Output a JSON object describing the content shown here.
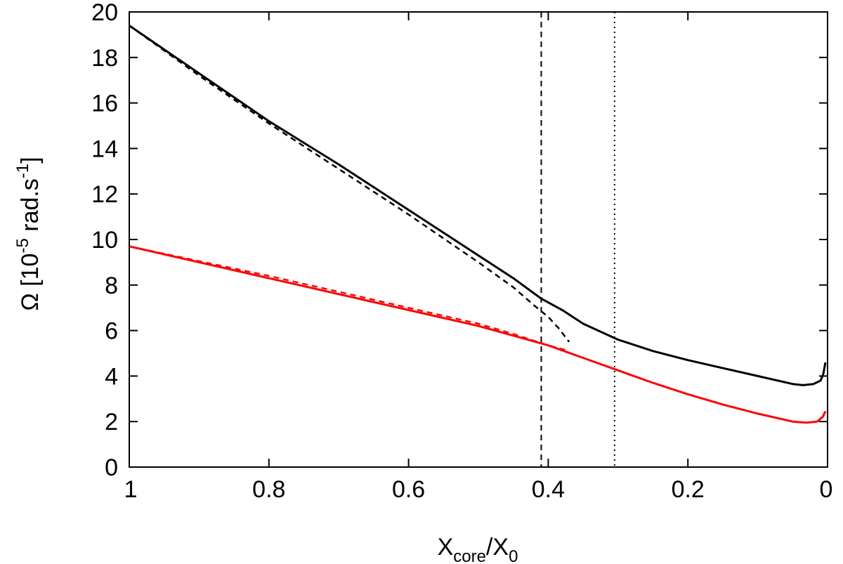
{
  "chart_data": {
    "type": "line",
    "xlabel": {
      "main": "X",
      "sub1": "core",
      "mid": "/X",
      "sub2": "0"
    },
    "ylabel": {
      "prefix": "Ω [10",
      "exp1": "-5",
      "mid": " rad.s",
      "exp2": "-1",
      "suffix": "]"
    },
    "xlim": [
      1.0,
      0.0
    ],
    "ylim": [
      0,
      20
    ],
    "x_reversed": true,
    "xticks": [
      "1",
      "0.8",
      "0.6",
      "0.4",
      "0.2",
      "0"
    ],
    "xtick_values": [
      1.0,
      0.8,
      0.6,
      0.4,
      0.2,
      0.0
    ],
    "yticks": [
      "0",
      "2",
      "4",
      "6",
      "8",
      "10",
      "12",
      "14",
      "16",
      "18",
      "20"
    ],
    "ytick_values": [
      0,
      2,
      4,
      6,
      8,
      10,
      12,
      14,
      16,
      18,
      20
    ],
    "grid": false,
    "legend": "none",
    "series": [
      {
        "color": "#000000",
        "style": "solid",
        "x": [
          1.0,
          0.9,
          0.8,
          0.7,
          0.6,
          0.5,
          0.45,
          0.41,
          0.38,
          0.35,
          0.3,
          0.25,
          0.2,
          0.15,
          0.1,
          0.05,
          0.035,
          0.02,
          0.01,
          0.006,
          0.003
        ],
        "y": [
          19.4,
          17.3,
          15.2,
          13.3,
          11.3,
          9.3,
          8.3,
          7.4,
          6.9,
          6.3,
          5.6,
          5.1,
          4.7,
          4.35,
          4.0,
          3.65,
          3.6,
          3.65,
          3.8,
          4.1,
          4.6
        ]
      },
      {
        "color": "#000000",
        "style": "dashed",
        "x": [
          1.0,
          0.9,
          0.8,
          0.7,
          0.6,
          0.5,
          0.45,
          0.42,
          0.4,
          0.385,
          0.37
        ],
        "y": [
          19.4,
          17.2,
          15.1,
          13.1,
          11.1,
          9.0,
          7.9,
          7.1,
          6.6,
          6.1,
          5.5
        ]
      },
      {
        "color": "#ff0000",
        "style": "solid",
        "x": [
          1.0,
          0.9,
          0.8,
          0.7,
          0.6,
          0.5,
          0.4,
          0.35,
          0.3,
          0.25,
          0.2,
          0.15,
          0.1,
          0.05,
          0.03,
          0.015,
          0.007,
          0.003
        ],
        "y": [
          9.7,
          9.0,
          8.3,
          7.6,
          6.9,
          6.2,
          5.35,
          4.8,
          4.25,
          3.7,
          3.2,
          2.75,
          2.35,
          2.0,
          1.95,
          2.0,
          2.2,
          2.45
        ]
      },
      {
        "color": "#ff0000",
        "style": "dashed",
        "x": [
          1.0,
          0.9,
          0.8,
          0.7,
          0.6,
          0.5,
          0.45,
          0.4,
          0.37
        ],
        "y": [
          9.7,
          9.05,
          8.4,
          7.7,
          7.0,
          6.3,
          5.85,
          5.35,
          5.1
        ]
      }
    ],
    "vlines": [
      {
        "x": 0.41,
        "style": "dashed",
        "color": "#000000"
      },
      {
        "x": 0.305,
        "style": "dotted",
        "color": "#000000"
      }
    ]
  }
}
